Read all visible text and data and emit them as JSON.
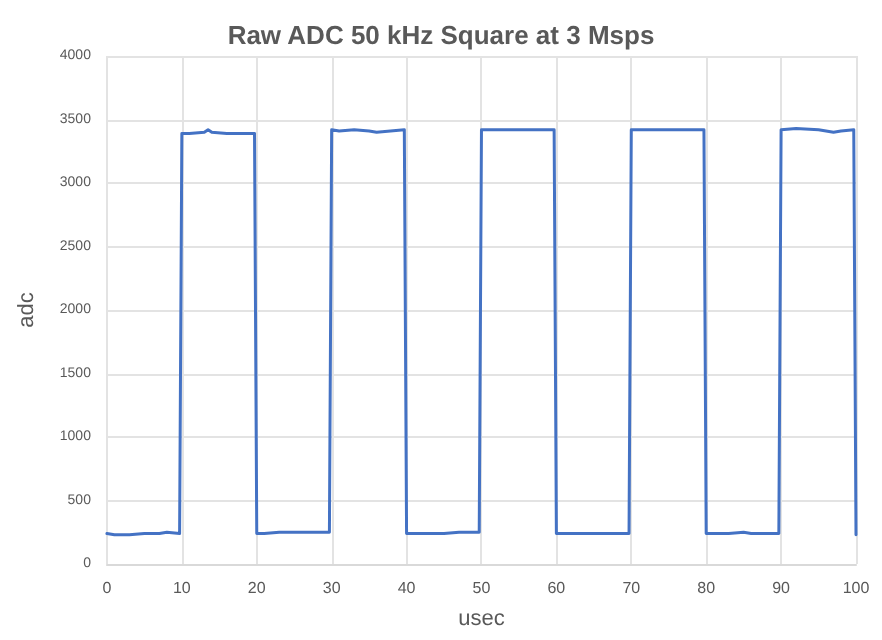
{
  "chart_data": {
    "type": "line",
    "title": "Raw ADC 50 kHz Square at 3 Msps",
    "xlabel": "usec",
    "ylabel": "adc",
    "series": [
      {
        "color": "#4472c4",
        "x": [
          0,
          1,
          2,
          3,
          5,
          7,
          8,
          9.7,
          10,
          11,
          13,
          13.5,
          14,
          16,
          19.7,
          20,
          21,
          23,
          26,
          29.7,
          30,
          31,
          33,
          35,
          36,
          39.7,
          40,
          42,
          45,
          47,
          49.7,
          50,
          53,
          56,
          59.7,
          60,
          63,
          66,
          69.7,
          70,
          73,
          76,
          79.7,
          80,
          83,
          85,
          86,
          89.7,
          90,
          92,
          95,
          97,
          98,
          99.7,
          100
        ],
        "values": [
          240,
          230,
          230,
          230,
          240,
          240,
          250,
          240,
          3390,
          3390,
          3400,
          3420,
          3400,
          3390,
          3390,
          240,
          240,
          250,
          250,
          250,
          3420,
          3410,
          3420,
          3410,
          3400,
          3420,
          240,
          240,
          240,
          250,
          250,
          3420,
          3420,
          3420,
          3420,
          240,
          240,
          240,
          240,
          3420,
          3420,
          3420,
          3420,
          240,
          240,
          250,
          240,
          240,
          3420,
          3430,
          3420,
          3400,
          3410,
          3420,
          230
        ]
      }
    ],
    "xlim": [
      0,
      100
    ],
    "xticks": [
      0,
      10,
      20,
      30,
      40,
      50,
      60,
      70,
      80,
      90,
      100
    ],
    "ylim": [
      0,
      4000
    ],
    "yticks": [
      0,
      500,
      1000,
      1500,
      2000,
      2500,
      3000,
      3500,
      4000
    ],
    "grid": true,
    "marker": "none",
    "line_style": "solid"
  }
}
